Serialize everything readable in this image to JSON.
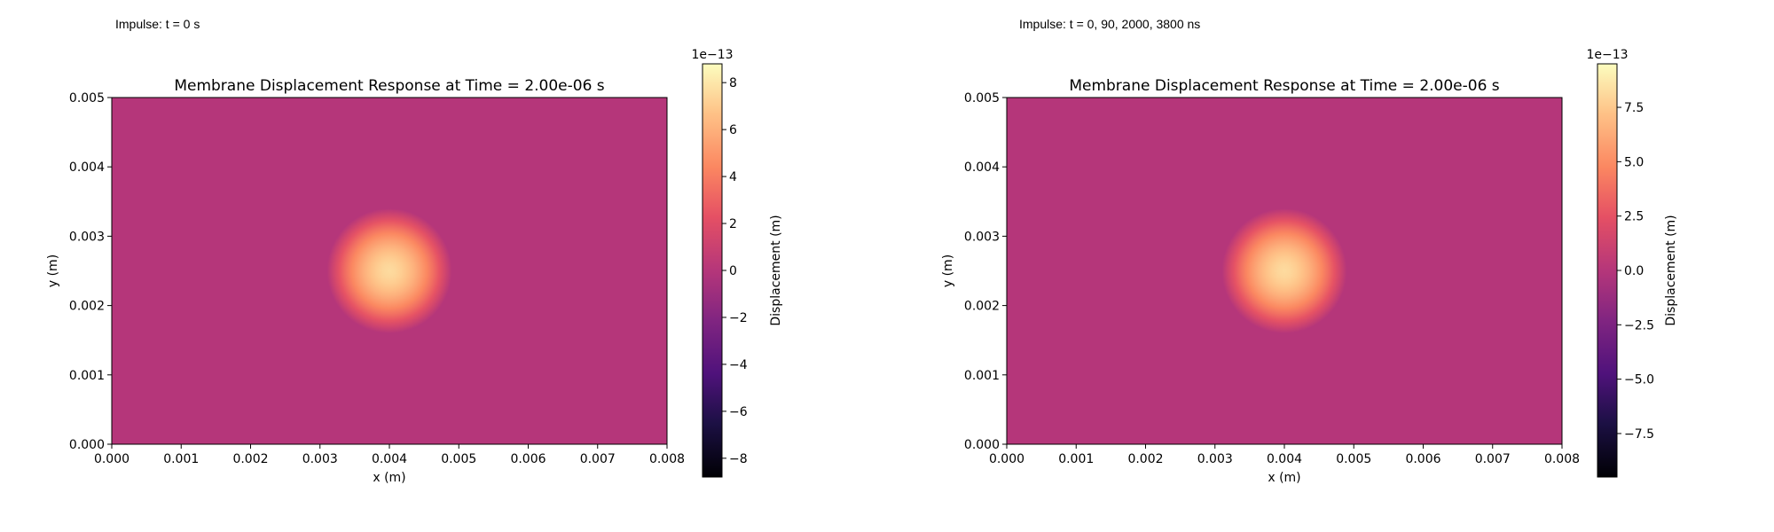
{
  "panels": [
    {
      "caption": "Impulse: t = 0 s",
      "title": "Membrane Displacement Response at Time = 2.00e-06 s"
    },
    {
      "caption": "Impulse: t = 0, 90, 2000, 3800 ns",
      "title": "Membrane Displacement Response at Time = 2.00e-06 s"
    }
  ],
  "chart_data": [
    {
      "type": "heatmap",
      "title": "Membrane Displacement Response at Time = 2.00e-06 s",
      "xlabel": "x (m)",
      "ylabel": "y (m)",
      "xlim": [
        0,
        0.008
      ],
      "ylim": [
        0,
        0.005
      ],
      "xticks": [
        "0.000",
        "0.001",
        "0.002",
        "0.003",
        "0.004",
        "0.005",
        "0.006",
        "0.007",
        "0.008"
      ],
      "yticks": [
        "0.000",
        "0.001",
        "0.002",
        "0.003",
        "0.004",
        "0.005"
      ],
      "colormap": "magma",
      "colorbar": {
        "label": "Displacement (m)",
        "offset_text": "1e−13",
        "vmin": -8.8,
        "vmax": 8.8,
        "ticks": [
          -8,
          -6,
          -4,
          -2,
          0,
          2,
          4,
          6,
          8
        ],
        "tick_labels": [
          "−8",
          "−6",
          "−4",
          "−2",
          "0",
          "2",
          "4",
          "6",
          "8"
        ]
      },
      "field": {
        "background": 0,
        "peak": 7.6,
        "center_x": 0.004,
        "center_y": 0.0025,
        "radius": 0.0009
      },
      "grid": false
    },
    {
      "type": "heatmap",
      "title": "Membrane Displacement Response at Time = 2.00e-06 s",
      "xlabel": "x (m)",
      "ylabel": "y (m)",
      "xlim": [
        0,
        0.008
      ],
      "ylim": [
        0,
        0.005
      ],
      "xticks": [
        "0.000",
        "0.001",
        "0.002",
        "0.003",
        "0.004",
        "0.005",
        "0.006",
        "0.007",
        "0.008"
      ],
      "yticks": [
        "0.000",
        "0.001",
        "0.002",
        "0.003",
        "0.004",
        "0.005"
      ],
      "colormap": "magma",
      "colorbar": {
        "label": "Displacement (m)",
        "offset_text": "1e−13",
        "vmin": -9.5,
        "vmax": 9.5,
        "ticks": [
          -7.5,
          -5.0,
          -2.5,
          0.0,
          2.5,
          5.0,
          7.5
        ],
        "tick_labels": [
          "−7.5",
          "−5.0",
          "−2.5",
          "0.0",
          "2.5",
          "5.0",
          "7.5"
        ]
      },
      "field": {
        "background": 0,
        "peak": 8.2,
        "center_x": 0.004,
        "center_y": 0.0025,
        "radius": 0.0009
      },
      "grid": false
    }
  ]
}
